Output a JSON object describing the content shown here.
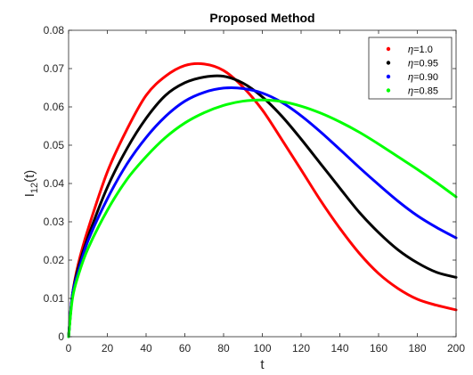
{
  "chart_data": {
    "type": "line",
    "title": "Proposed Method",
    "xlabel": "t",
    "ylabel_main": "I",
    "ylabel_sub": "12",
    "ylabel_tail": "(t)",
    "xlim": [
      0,
      200
    ],
    "ylim": [
      0,
      0.08
    ],
    "xticks": [
      "0",
      "20",
      "40",
      "60",
      "80",
      "100",
      "120",
      "140",
      "160",
      "180",
      "200"
    ],
    "yticks": [
      "0",
      "0.01",
      "0.02",
      "0.03",
      "0.04",
      "0.05",
      "0.06",
      "0.07",
      "0.08"
    ],
    "grid": false,
    "legend_position": "top-right",
    "x": [
      0,
      2,
      5,
      10,
      20,
      30,
      40,
      50,
      60,
      70,
      80,
      90,
      100,
      110,
      120,
      130,
      140,
      150,
      160,
      170,
      180,
      190,
      200
    ],
    "series": [
      {
        "name": "η=1.0",
        "label_prefix": "η",
        "label_value": "=1.0",
        "color": "#ff0000",
        "values": [
          0,
          0.011,
          0.019,
          0.028,
          0.043,
          0.054,
          0.063,
          0.068,
          0.0708,
          0.0712,
          0.0695,
          0.0652,
          0.0592,
          0.0515,
          0.0436,
          0.0356,
          0.0283,
          0.0218,
          0.0165,
          0.0126,
          0.0098,
          0.0082,
          0.007
        ]
      },
      {
        "name": "η=0.95",
        "label_prefix": "η",
        "label_value": "=0.95",
        "color": "#000000",
        "values": [
          0,
          0.011,
          0.018,
          0.026,
          0.039,
          0.049,
          0.057,
          0.063,
          0.0663,
          0.0678,
          0.068,
          0.0662,
          0.0626,
          0.0576,
          0.0516,
          0.0452,
          0.0388,
          0.0325,
          0.0272,
          0.0227,
          0.0193,
          0.0168,
          0.0155
        ]
      },
      {
        "name": "η=0.90",
        "label_prefix": "η",
        "label_value": "=0.90",
        "color": "#0000ff",
        "values": [
          0,
          0.011,
          0.017,
          0.025,
          0.036,
          0.045,
          0.052,
          0.0575,
          0.0615,
          0.0638,
          0.0649,
          0.0648,
          0.0636,
          0.0612,
          0.0577,
          0.0535,
          0.0489,
          0.0442,
          0.0397,
          0.0354,
          0.0316,
          0.0285,
          0.0258
        ]
      },
      {
        "name": "η=0.85",
        "label_prefix": "η",
        "label_value": "=0.85",
        "color": "#00ff00",
        "values": [
          0,
          0.01,
          0.016,
          0.023,
          0.033,
          0.041,
          0.047,
          0.052,
          0.0558,
          0.0585,
          0.0604,
          0.0615,
          0.0618,
          0.0614,
          0.0602,
          0.0584,
          0.0561,
          0.0534,
          0.0503,
          0.047,
          0.0437,
          0.0402,
          0.0365
        ]
      }
    ]
  }
}
